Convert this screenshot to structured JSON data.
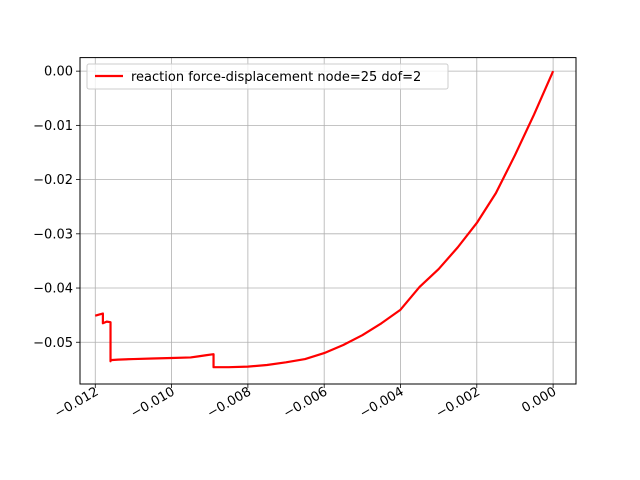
{
  "chart_data": {
    "type": "line",
    "title": "",
    "xlabel": "",
    "ylabel": "",
    "xlim": [
      -0.0124,
      0.0006
    ],
    "ylim": [
      -0.0577,
      0.0025
    ],
    "grid": true,
    "legend_position": "top-left",
    "x_ticks": [
      -0.012,
      -0.01,
      -0.008,
      -0.006,
      -0.004,
      -0.002,
      0.0
    ],
    "x_tick_labels": [
      "−0.012",
      "−0.010",
      "−0.008",
      "−0.006",
      "−0.004",
      "−0.002",
      "0.000"
    ],
    "y_ticks": [
      0.0,
      -0.01,
      -0.02,
      -0.03,
      -0.04,
      -0.05
    ],
    "y_tick_labels": [
      "0.00",
      "−0.01",
      "−0.02",
      "−0.03",
      "−0.04",
      "−0.05"
    ],
    "series": [
      {
        "name": "reaction force-displacement node=25 dof=2",
        "color": "#ff0000",
        "x": [
          0.0,
          -0.0005,
          -0.001,
          -0.0015,
          -0.002,
          -0.0025,
          -0.003,
          -0.0035,
          -0.004,
          -0.0045,
          -0.005,
          -0.0055,
          -0.006,
          -0.0065,
          -0.007,
          -0.0075,
          -0.008,
          -0.0085,
          -0.0089,
          -0.0089,
          -0.0091,
          -0.0093,
          -0.0095,
          -0.01,
          -0.0105,
          -0.011,
          -0.0114,
          -0.0116,
          -0.0116,
          -0.0116,
          -0.0117,
          -0.0118,
          -0.0118,
          -0.0119,
          -0.012
        ],
        "y": [
          0.0,
          -0.008,
          -0.0155,
          -0.0225,
          -0.028,
          -0.0325,
          -0.0365,
          -0.0398,
          -0.044,
          -0.0465,
          -0.0487,
          -0.0505,
          -0.052,
          -0.0531,
          -0.0537,
          -0.0542,
          -0.0545,
          -0.0546,
          -0.0546,
          -0.0522,
          -0.0524,
          -0.0526,
          -0.0528,
          -0.0529,
          -0.053,
          -0.0531,
          -0.0532,
          -0.0533,
          -0.0535,
          -0.0463,
          -0.0462,
          -0.0465,
          -0.0447,
          -0.0449,
          -0.0451
        ]
      }
    ]
  }
}
